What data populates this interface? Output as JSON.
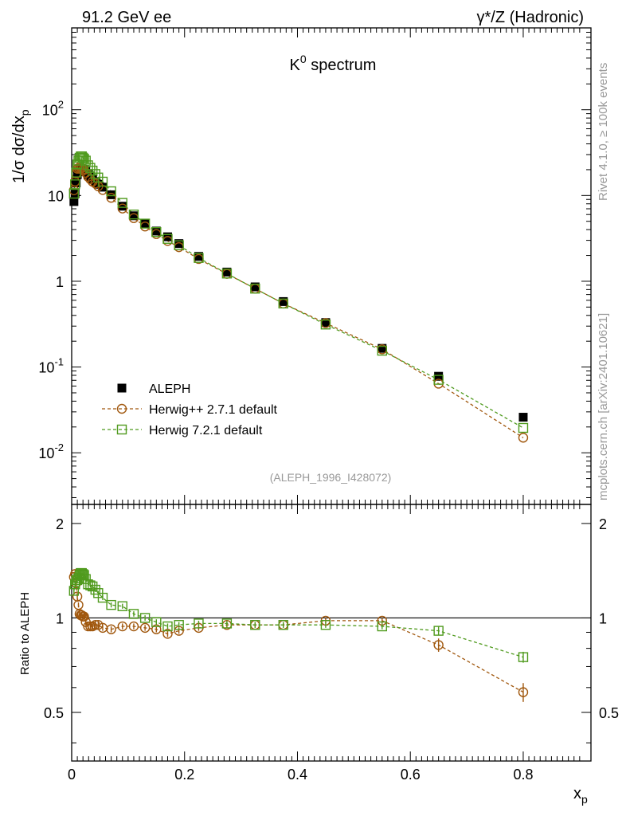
{
  "header": {
    "left": "91.2 GeV ee",
    "right": "γ*/Z (Hadronic)"
  },
  "side_labels": {
    "rivet": "Rivet 4.1.0, ≥ 100k events",
    "mcplots": "mcplots.cern.ch [arXiv:2401.10621]"
  },
  "chart_data": {
    "type": "scatter",
    "title": "K0 spectrum",
    "reference": "(ALEPH_1996_I428072)",
    "xlabel": "x_p",
    "ylabel": "1/σ dσ/dx_p",
    "ratio_ylabel": "Ratio to ALEPH",
    "xlim": [
      0,
      0.92
    ],
    "ylim": [
      0.0025,
      900
    ],
    "ylog": true,
    "ratio_ylim": [
      0.35,
      2.3
    ],
    "x_ticks": [
      "0",
      "0.2",
      "0.4",
      "0.6",
      "0.8"
    ],
    "y_ticks": [
      {
        "base": "10",
        "exp": "-2"
      },
      {
        "base": "10",
        "exp": "-1"
      },
      {
        "base": "1",
        "exp": ""
      },
      {
        "base": "10",
        "exp": ""
      },
      {
        "base": "10",
        "exp": "2"
      }
    ],
    "ratio_ticks": [
      "0.5",
      "1",
      "2"
    ],
    "x": [
      0.004,
      0.006,
      0.008,
      0.01,
      0.012,
      0.014,
      0.016,
      0.018,
      0.02,
      0.022,
      0.025,
      0.029,
      0.033,
      0.037,
      0.042,
      0.047,
      0.055,
      0.07,
      0.09,
      0.11,
      0.13,
      0.15,
      0.17,
      0.19,
      0.225,
      0.275,
      0.325,
      0.375,
      0.45,
      0.55,
      0.65,
      0.8
    ],
    "series": [
      {
        "name": "ALEPH",
        "marker": "square-filled",
        "color": "#000000",
        "values": [
          8.5,
          10.5,
          14,
          17.5,
          19,
          20,
          20.5,
          20.5,
          20,
          19.5,
          19,
          17.5,
          16.5,
          15.5,
          14.5,
          13.5,
          12.5,
          10.2,
          7.5,
          5.8,
          4.7,
          3.85,
          3.3,
          2.75,
          1.95,
          1.28,
          0.86,
          0.58,
          0.33,
          0.165,
          0.078,
          0.026
        ]
      },
      {
        "name": "Herwig++ 2.7.1 default",
        "marker": "circle-open",
        "color": "#a0570d",
        "values": [
          11.5,
          14.5,
          18,
          20.5,
          21,
          20.5,
          21,
          20.8,
          20.2,
          19.8,
          18.4,
          16.5,
          15.5,
          14.5,
          13.8,
          12.8,
          11.6,
          9.4,
          7.05,
          5.45,
          4.35,
          3.55,
          2.95,
          2.5,
          1.82,
          1.22,
          0.82,
          0.55,
          0.325,
          0.161,
          0.064,
          0.015
        ]
      },
      {
        "name": "Herwig 7.2.1 default",
        "marker": "square-open",
        "color": "#4f9a1d",
        "values": [
          10.5,
          13.5,
          18.5,
          23,
          25.5,
          27.5,
          28.5,
          28.6,
          27.6,
          26.7,
          25.5,
          22.5,
          21,
          19.5,
          17.8,
          16.2,
          14.5,
          11.2,
          8.2,
          6.0,
          4.7,
          3.75,
          3.12,
          2.63,
          1.87,
          1.23,
          0.82,
          0.55,
          0.313,
          0.155,
          0.071,
          0.0195
        ]
      }
    ],
    "ratio_series": [
      {
        "name": "Herwig++ 2.7.1 default",
        "color": "#a0570d",
        "values": [
          1.35,
          1.38,
          1.29,
          1.17,
          1.1,
          1.03,
          1.02,
          1.02,
          1.01,
          1.01,
          0.97,
          0.94,
          0.94,
          0.94,
          0.95,
          0.95,
          0.93,
          0.92,
          0.94,
          0.94,
          0.93,
          0.92,
          0.89,
          0.91,
          0.93,
          0.95,
          0.95,
          0.95,
          0.98,
          0.98,
          0.82,
          0.58
        ],
        "errors": [
          0.03,
          0.03,
          0.03,
          0.03,
          0.02,
          0.02,
          0.02,
          0.02,
          0.02,
          0.02,
          0.02,
          0.02,
          0.02,
          0.02,
          0.02,
          0.02,
          0.02,
          0.02,
          0.02,
          0.02,
          0.02,
          0.02,
          0.02,
          0.02,
          0.02,
          0.02,
          0.02,
          0.02,
          0.02,
          0.02,
          0.04,
          0.04
        ]
      },
      {
        "name": "Herwig 7.2.1 default",
        "color": "#4f9a1d",
        "values": [
          1.22,
          1.28,
          1.32,
          1.32,
          1.34,
          1.37,
          1.39,
          1.39,
          1.38,
          1.37,
          1.33,
          1.28,
          1.27,
          1.26,
          1.23,
          1.2,
          1.16,
          1.1,
          1.09,
          1.03,
          1.0,
          0.97,
          0.94,
          0.95,
          0.96,
          0.96,
          0.95,
          0.95,
          0.95,
          0.94,
          0.91,
          0.75
        ],
        "errors": [
          0.03,
          0.03,
          0.03,
          0.03,
          0.03,
          0.03,
          0.03,
          0.03,
          0.03,
          0.03,
          0.03,
          0.02,
          0.02,
          0.02,
          0.02,
          0.02,
          0.02,
          0.02,
          0.02,
          0.02,
          0.02,
          0.02,
          0.02,
          0.02,
          0.02,
          0.02,
          0.02,
          0.02,
          0.02,
          0.02,
          0.03,
          0.03
        ]
      }
    ]
  }
}
